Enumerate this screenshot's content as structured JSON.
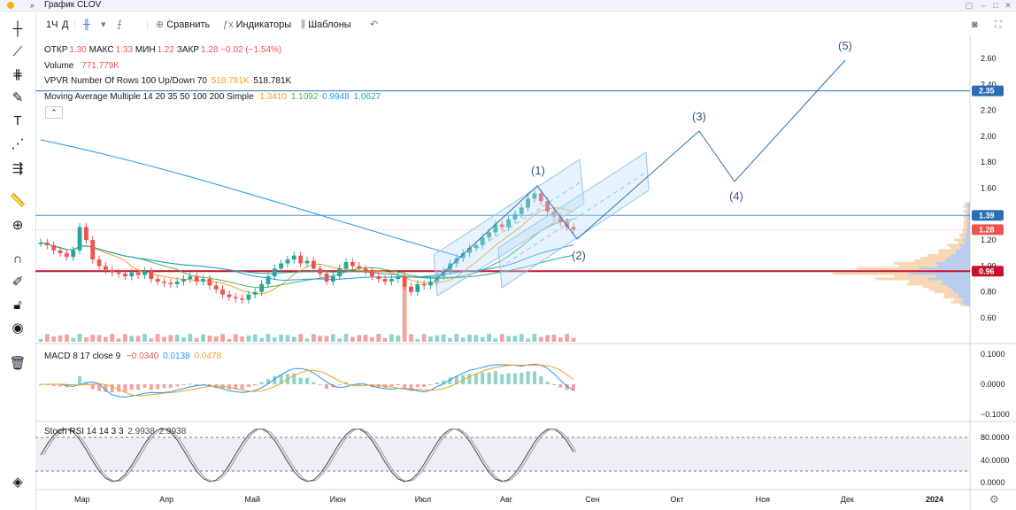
{
  "window": {
    "title": "График CLOV",
    "search_icon": "⌕"
  },
  "toolbar": {
    "interval": "1Ч",
    "chart_type_letter": "Д",
    "compare": "Сравнить",
    "indicators": "Индикаторы",
    "templates": "Шаблоны"
  },
  "legend": {
    "ohlc": {
      "open_label": "ОТКР",
      "open": "1.30",
      "high_label": "МАКС",
      "high": "1.33",
      "low_label": "МИН",
      "low": "1.22",
      "close_label": "ЗАКР",
      "close": "1.28",
      "change": "−0.02 (−1.54%)"
    },
    "volume": {
      "label": "Volume",
      "value": "771.779K"
    },
    "vpvr": {
      "label": "VPVR Number Of Rows 100 Up/Down 70",
      "v1": "518.781K",
      "v2": "518.781K"
    },
    "ma": {
      "label": "Moving Average Multiple 14 20 35 50 100 200 Simple",
      "v1": "1.3410",
      "v2": "1.1092",
      "v3": "0.9948",
      "v4": "1.0627"
    },
    "collapse": "⌃"
  },
  "macd": {
    "label": "MACD 8 17 close 9",
    "v1": "−0.0340",
    "v2": "0.0138",
    "v3": "0.0478"
  },
  "stoch": {
    "label": "Stoch RSI 14 14 3 3",
    "v1": "2.9938",
    "v2": "2.9938"
  },
  "colors": {
    "up": "#26a69a",
    "down": "#ef5350",
    "accent": "#2962ff",
    "hline": "#4a90c8",
    "red_line": "#c8102e",
    "channel": "#8ec6ea"
  },
  "chart_data": {
    "type": "candlestick",
    "price_axis": {
      "ticks": [
        "2.60",
        "2.40",
        "2.20",
        "2.00",
        "1.80",
        "1.60",
        "1.40",
        "1.20",
        "1.00",
        "0.80",
        "0.60"
      ],
      "badges": [
        {
          "value": "2.35",
          "color": "#2a6fb5"
        },
        {
          "value": "1.39",
          "color": "#2a6fb5"
        },
        {
          "value": "1.28",
          "color": "#ef5350"
        },
        {
          "value": "0.96",
          "color": "#c8102e"
        }
      ]
    },
    "macd_axis": {
      "ticks": [
        "0.1000",
        "0.0000",
        "−0.1000"
      ]
    },
    "stoch_axis": {
      "ticks": [
        "80.0000",
        "40.0000",
        "0.0000"
      ]
    },
    "time_axis": [
      "Мар",
      "Апр",
      "Май",
      "Июн",
      "Июл",
      "Авг",
      "Сен",
      "Окт",
      "Ноя",
      "Дек",
      "2024"
    ],
    "elliott_labels": [
      "(1)",
      "(2)",
      "(3)",
      "(4)",
      "(5)"
    ],
    "horizontal_lines": [
      2.35,
      1.39,
      0.96
    ],
    "close_series": [
      1.18,
      1.16,
      1.12,
      1.1,
      1.07,
      1.12,
      1.3,
      1.2,
      1.05,
      1.0,
      0.97,
      0.95,
      0.94,
      0.92,
      0.95,
      0.93,
      0.96,
      0.9,
      0.88,
      0.87,
      0.86,
      0.88,
      0.9,
      0.92,
      0.88,
      0.9,
      0.85,
      0.82,
      0.78,
      0.76,
      0.75,
      0.74,
      0.78,
      0.8,
      0.86,
      0.92,
      0.98,
      1.02,
      1.05,
      1.08,
      1.02,
      1.04,
      0.98,
      0.94,
      0.88,
      0.92,
      0.98,
      1.03,
      1.0,
      0.98,
      0.96,
      0.92,
      0.9,
      0.88,
      0.9,
      0.92,
      0.84,
      0.8,
      0.86,
      0.85,
      0.88,
      0.92,
      0.96,
      1.02,
      1.06,
      1.1,
      1.14,
      1.16,
      1.22,
      1.26,
      1.32,
      1.3,
      1.36,
      1.4,
      1.45,
      1.52,
      1.56,
      1.5,
      1.42,
      1.38,
      1.34,
      1.3,
      1.28
    ]
  }
}
